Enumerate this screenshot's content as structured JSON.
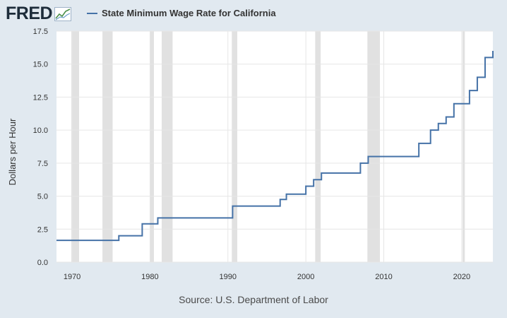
{
  "header": {
    "logo_text": "FRED",
    "logo_icon": "line-chart-icon",
    "legend_label": "State Minimum Wage Rate for California"
  },
  "source": "Source: U.S. Department of Labor",
  "colors": {
    "series": "#4572a7",
    "recession": "#e1e1e1",
    "background": "#e1e9f0",
    "plot_bg": "#ffffff",
    "grid": "#e6e6e6"
  },
  "chart_data": {
    "type": "line",
    "title": "",
    "xlabel": "",
    "ylabel": "Dollars per Hour",
    "xlim": [
      1968.0,
      2024.0
    ],
    "ylim": [
      0,
      17.5
    ],
    "x_ticks": [
      1970,
      1980,
      1990,
      2000,
      2010,
      2020
    ],
    "x_tick_labels": [
      "1970",
      "1980",
      "1990",
      "2000",
      "2010",
      "2020"
    ],
    "y_ticks": [
      0,
      2.5,
      5,
      7.5,
      10,
      12.5,
      15,
      17.5
    ],
    "y_tick_labels": [
      "0.0",
      "2.5",
      "5.0",
      "7.5",
      "10.0",
      "12.5",
      "15.0",
      "17.5"
    ],
    "grid": true,
    "step": true,
    "series": [
      {
        "name": "State Minimum Wage Rate for California",
        "points": [
          [
            1968,
            1.65
          ],
          [
            1976,
            2.0
          ],
          [
            1979,
            2.9
          ],
          [
            1981,
            3.35
          ],
          [
            1990.6,
            4.25
          ],
          [
            1996.7,
            4.75
          ],
          [
            1997.5,
            5.15
          ],
          [
            2000,
            5.75
          ],
          [
            2001,
            6.25
          ],
          [
            2002,
            6.75
          ],
          [
            2007,
            7.5
          ],
          [
            2008,
            8.0
          ],
          [
            2014.5,
            9.0
          ],
          [
            2016,
            10.0
          ],
          [
            2017,
            10.5
          ],
          [
            2018,
            11.0
          ],
          [
            2019,
            12.0
          ],
          [
            2021,
            13.0
          ],
          [
            2022,
            14.0
          ],
          [
            2023,
            15.5
          ],
          [
            2024,
            16.0
          ]
        ]
      }
    ],
    "recessions": [
      [
        1969.9,
        1970.9
      ],
      [
        1973.9,
        1975.2
      ],
      [
        1980.0,
        1980.5
      ],
      [
        1981.5,
        1982.9
      ],
      [
        1990.5,
        1991.2
      ],
      [
        2001.2,
        2001.9
      ],
      [
        2007.9,
        2009.5
      ],
      [
        2020.1,
        2020.4
      ]
    ]
  }
}
